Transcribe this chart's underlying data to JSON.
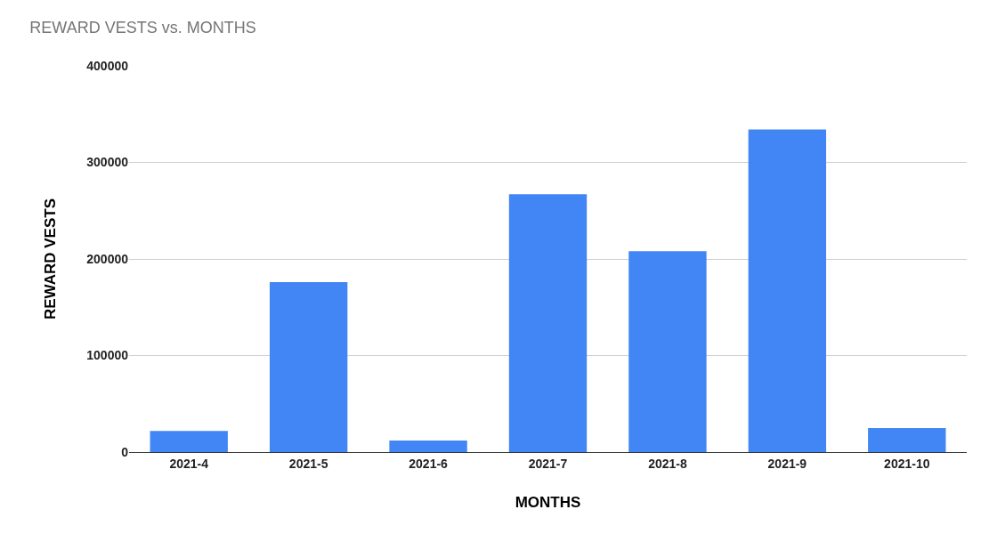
{
  "chart_data": {
    "type": "bar",
    "title": "REWARD VESTS vs. MONTHS",
    "xlabel": "MONTHS",
    "ylabel": "REWARD VESTS",
    "categories": [
      "2021-4",
      "2021-5",
      "2021-6",
      "2021-7",
      "2021-8",
      "2021-9",
      "2021-10"
    ],
    "values": [
      22000,
      176000,
      12000,
      267000,
      208000,
      334000,
      25000
    ],
    "color": "#4285f4",
    "ylim": [
      0,
      400000
    ],
    "yticks": [
      0,
      100000,
      200000,
      300000,
      400000
    ],
    "grid": "y",
    "legend": false
  }
}
